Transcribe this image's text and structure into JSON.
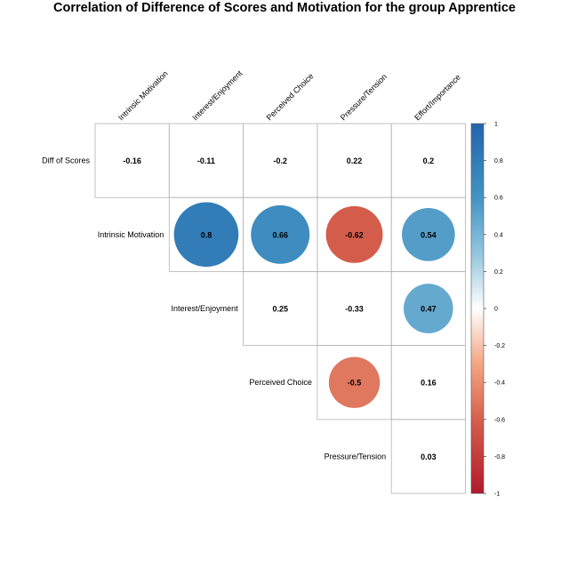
{
  "chart_data": {
    "type": "heatmap",
    "title": "Correlation of Difference of Scores and Motivation for the group Apprentice",
    "columns": [
      "Intrinsic Motivation",
      "Interest/Enjoyment",
      "Perceived Choice",
      "Pressure/Tension",
      "Effort/Importance"
    ],
    "rows": [
      "Diff of Scores",
      "Intrinsic Motivation",
      "Interest/Enjoyment",
      "Perceived Choice",
      "Pressure/Tension"
    ],
    "cells": [
      {
        "row": 0,
        "col": 0,
        "value": -0.16,
        "label": "-0.16",
        "circle": false
      },
      {
        "row": 0,
        "col": 1,
        "value": -0.11,
        "label": "-0.11",
        "circle": false
      },
      {
        "row": 0,
        "col": 2,
        "value": -0.2,
        "label": "-0.2",
        "circle": false
      },
      {
        "row": 0,
        "col": 3,
        "value": 0.22,
        "label": "0.22",
        "circle": false
      },
      {
        "row": 0,
        "col": 4,
        "value": 0.2,
        "label": "0.2",
        "circle": false
      },
      {
        "row": 1,
        "col": 1,
        "value": 0.8,
        "label": "0.8",
        "circle": true
      },
      {
        "row": 1,
        "col": 2,
        "value": 0.66,
        "label": "0.66",
        "circle": true
      },
      {
        "row": 1,
        "col": 3,
        "value": -0.62,
        "label": "-0.62",
        "circle": true
      },
      {
        "row": 1,
        "col": 4,
        "value": 0.54,
        "label": "0.54",
        "circle": true
      },
      {
        "row": 2,
        "col": 2,
        "value": 0.25,
        "label": "0.25",
        "circle": false
      },
      {
        "row": 2,
        "col": 3,
        "value": -0.33,
        "label": "-0.33",
        "circle": false
      },
      {
        "row": 2,
        "col": 4,
        "value": 0.47,
        "label": "0.47",
        "circle": true
      },
      {
        "row": 3,
        "col": 3,
        "value": -0.5,
        "label": "-0.5",
        "circle": true
      },
      {
        "row": 3,
        "col": 4,
        "value": 0.16,
        "label": "0.16",
        "circle": false
      },
      {
        "row": 4,
        "col": 4,
        "value": 0.03,
        "label": "0.03",
        "circle": false
      }
    ],
    "colorbar": {
      "range": [
        -1,
        1
      ],
      "ticks": [
        "1",
        "0.8",
        "0.6",
        "0.4",
        "0.2",
        "0",
        "-0.2",
        "-0.4",
        "-0.6",
        "-0.8",
        "-1"
      ],
      "tick_values": [
        1,
        0.8,
        0.6,
        0.4,
        0.2,
        0,
        -0.2,
        -0.4,
        -0.6,
        -0.8,
        -1
      ],
      "colors": {
        "negative": "#B2182B",
        "mid_negative": "#D6604D",
        "light_negative": "#F4A582",
        "neutral": "#FFFFFF",
        "light_positive": "#92C5DE",
        "mid_positive": "#4393C3",
        "positive": "#2166AC"
      }
    },
    "grid": true,
    "legend": "right"
  }
}
